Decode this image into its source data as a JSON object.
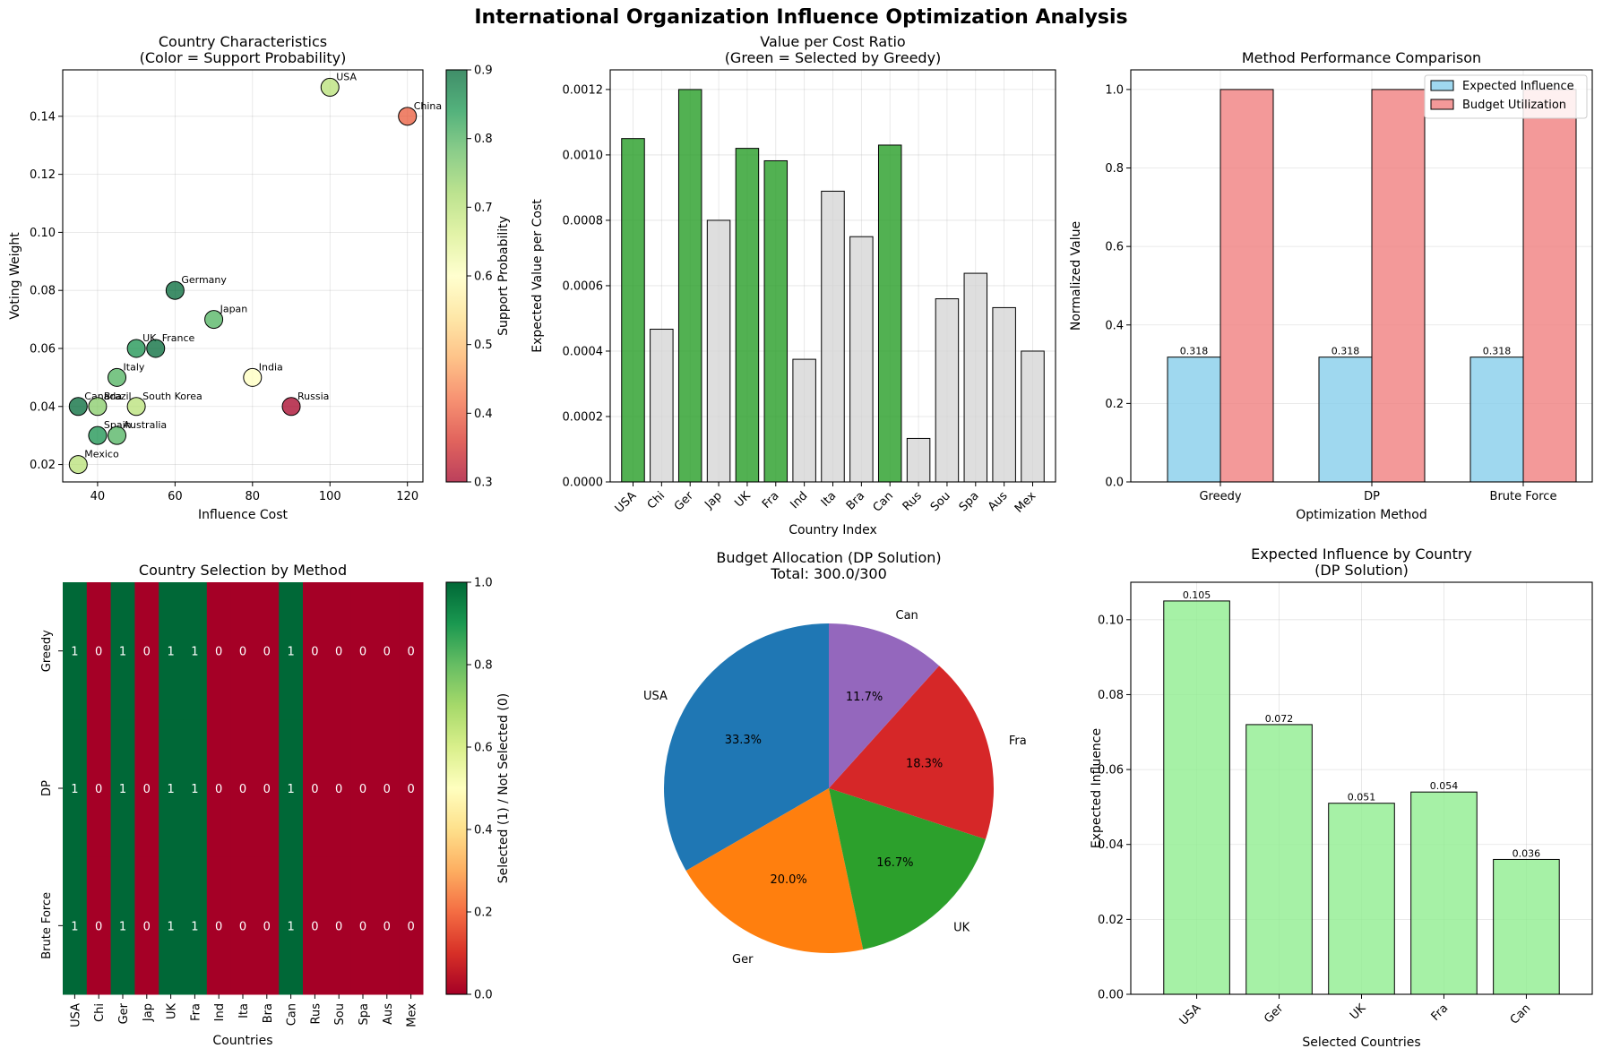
{
  "figure": {
    "suptitle": "International Organization Influence Optimization Analysis"
  },
  "chart_data": [
    {
      "type": "scatter",
      "title": "Country Characteristics\n(Color = Support Probability)",
      "xlabel": "Influence Cost",
      "ylabel": "Voting Weight",
      "xlim": [
        31,
        124
      ],
      "ylim": [
        0.014,
        0.156
      ],
      "xticks": [
        40,
        60,
        80,
        100,
        120
      ],
      "yticks": [
        0.02,
        0.04,
        0.06,
        0.08,
        0.1,
        0.12,
        0.14
      ],
      "ytick_labels": [
        "0.02",
        "0.04",
        "0.06",
        "0.08",
        "0.10",
        "0.12",
        "0.14"
      ],
      "grid": true,
      "colorbar": {
        "label": "Support Probability",
        "range": [
          0.3,
          0.9
        ],
        "ticks": [
          "0.3",
          "0.4",
          "0.5",
          "0.6",
          "0.7",
          "0.8",
          "0.9"
        ],
        "colormap": "RdYlGn"
      },
      "points": [
        {
          "label": "USA",
          "x": 100,
          "y": 0.15,
          "support": 0.7
        },
        {
          "label": "China",
          "x": 120,
          "y": 0.14,
          "support": 0.4
        },
        {
          "label": "Germany",
          "x": 60,
          "y": 0.08,
          "support": 0.9
        },
        {
          "label": "Japan",
          "x": 70,
          "y": 0.07,
          "support": 0.8
        },
        {
          "label": "UK",
          "x": 50,
          "y": 0.06,
          "support": 0.85
        },
        {
          "label": "France",
          "x": 55,
          "y": 0.06,
          "support": 0.9
        },
        {
          "label": "Italy",
          "x": 45,
          "y": 0.05,
          "support": 0.8
        },
        {
          "label": "India",
          "x": 80,
          "y": 0.05,
          "support": 0.6
        },
        {
          "label": "Canada",
          "x": 35,
          "y": 0.04,
          "support": 0.9
        },
        {
          "label": "Brazil",
          "x": 40,
          "y": 0.04,
          "support": 0.75
        },
        {
          "label": "South Korea",
          "x": 50,
          "y": 0.04,
          "support": 0.7
        },
        {
          "label": "Russia",
          "x": 90,
          "y": 0.04,
          "support": 0.3
        },
        {
          "label": "Spain",
          "x": 40,
          "y": 0.03,
          "support": 0.85
        },
        {
          "label": "Australia",
          "x": 45,
          "y": 0.03,
          "support": 0.8
        },
        {
          "label": "Mexico",
          "x": 35,
          "y": 0.02,
          "support": 0.7
        }
      ]
    },
    {
      "type": "bar",
      "title": "Value per Cost Ratio\n(Green = Selected by Greedy)",
      "xlabel": "Country Index",
      "ylabel": "Expected Value per Cost",
      "ylim": [
        0,
        0.00126
      ],
      "yticks": [
        0,
        0.0002,
        0.0004,
        0.0006,
        0.0008,
        0.001,
        0.0012
      ],
      "ytick_labels": [
        "0.0000",
        "0.0002",
        "0.0004",
        "0.0006",
        "0.0008",
        "0.0010",
        "0.0012"
      ],
      "grid": true,
      "categories": [
        "USA",
        "Chi",
        "Ger",
        "Jap",
        "UK",
        "Fra",
        "Ind",
        "Ita",
        "Bra",
        "Can",
        "Rus",
        "Sou",
        "Spa",
        "Aus",
        "Mex"
      ],
      "values": [
        0.00105,
        0.000467,
        0.0012,
        0.0008,
        0.00102,
        0.000982,
        0.000375,
        0.000889,
        0.00075,
        0.00103,
        0.000133,
        0.00056,
        0.000638,
        0.000533,
        0.0004
      ],
      "selected": [
        1,
        0,
        1,
        0,
        1,
        1,
        0,
        0,
        0,
        1,
        0,
        0,
        0,
        0,
        0
      ],
      "colors": {
        "selected": "#2ca02c",
        "not_selected": "#d3d3d3"
      }
    },
    {
      "type": "bar",
      "title": "Method Performance Comparison",
      "xlabel": "Optimization Method",
      "ylabel": "Normalized Value",
      "ylim": [
        0,
        1.05
      ],
      "yticks": [
        0,
        0.2,
        0.4,
        0.6,
        0.8,
        1.0
      ],
      "ytick_labels": [
        "0.0",
        "0.2",
        "0.4",
        "0.6",
        "0.8",
        "1.0"
      ],
      "grid": true,
      "legend": "top-right",
      "categories": [
        "Greedy",
        "DP",
        "Brute Force"
      ],
      "series": [
        {
          "name": "Expected Influence",
          "values": [
            0.318,
            0.318,
            0.318
          ],
          "color": "#87ceeb",
          "labels": [
            "0.318",
            "0.318",
            "0.318"
          ]
        },
        {
          "name": "Budget Utilization",
          "values": [
            1.0,
            1.0,
            1.0
          ],
          "color": "#f08080"
        }
      ]
    },
    {
      "type": "heatmap",
      "title": "Country Selection by Method",
      "xlabel": "Countries",
      "rows": [
        "Greedy",
        "DP",
        "Brute Force"
      ],
      "columns": [
        "USA",
        "Chi",
        "Ger",
        "Jap",
        "UK",
        "Fra",
        "Ind",
        "Ita",
        "Bra",
        "Can",
        "Rus",
        "Sou",
        "Spa",
        "Aus",
        "Mex"
      ],
      "values": [
        [
          1,
          0,
          1,
          0,
          1,
          1,
          0,
          0,
          0,
          1,
          0,
          0,
          0,
          0,
          0
        ],
        [
          1,
          0,
          1,
          0,
          1,
          1,
          0,
          0,
          0,
          1,
          0,
          0,
          0,
          0,
          0
        ],
        [
          1,
          0,
          1,
          0,
          1,
          1,
          0,
          0,
          0,
          1,
          0,
          0,
          0,
          0,
          0
        ]
      ],
      "colorbar": {
        "label": "Selected (1) / Not Selected (0)",
        "range": [
          0,
          1
        ],
        "ticks": [
          "0.0",
          "0.2",
          "0.4",
          "0.6",
          "0.8",
          "1.0"
        ],
        "colormap": "RdYlGn"
      }
    },
    {
      "type": "pie",
      "title": "Budget Allocation (DP Solution)\nTotal: 300.0/300",
      "labels": [
        "USA",
        "Ger",
        "UK",
        "Fra",
        "Can"
      ],
      "values": [
        100,
        60,
        50,
        55,
        35
      ],
      "percent_labels": [
        "33.3%",
        "20.0%",
        "16.7%",
        "18.3%",
        "11.7%"
      ],
      "colors": [
        "#1f77b4",
        "#ff7f0e",
        "#2ca02c",
        "#d62728",
        "#9467bd"
      ],
      "counterclockwise": true,
      "start_angle": 90
    },
    {
      "type": "bar",
      "title": "Expected Influence by Country\n(DP Solution)",
      "xlabel": "Selected Countries",
      "ylabel": "Expected Influence",
      "ylim": [
        0,
        0.11
      ],
      "yticks": [
        0,
        0.02,
        0.04,
        0.06,
        0.08,
        0.1
      ],
      "ytick_labels": [
        "0.00",
        "0.02",
        "0.04",
        "0.06",
        "0.08",
        "0.10"
      ],
      "grid": true,
      "categories": [
        "USA",
        "Ger",
        "UK",
        "Fra",
        "Can"
      ],
      "values": [
        0.105,
        0.072,
        0.051,
        0.054,
        0.036
      ],
      "value_labels": [
        "0.105",
        "0.072",
        "0.051",
        "0.054",
        "0.036"
      ],
      "color": "#90ee90"
    }
  ]
}
